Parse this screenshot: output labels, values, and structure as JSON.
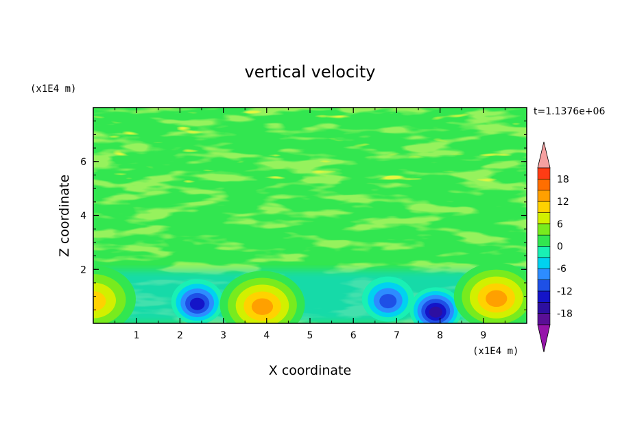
{
  "chart_data": {
    "type": "heatmap",
    "title": "vertical velocity",
    "xlabel": "X coordinate",
    "ylabel": "Z coordinate",
    "x_unit": "(x1E4 m)",
    "y_unit": "(x1E4 m)",
    "time_label": "t=1.1376e+06",
    "xlim": [
      0,
      10
    ],
    "ylim": [
      0,
      8
    ],
    "x_ticks": [
      "1",
      "2",
      "3",
      "4",
      "5",
      "6",
      "7",
      "8",
      "9"
    ],
    "y_ticks": [
      "2",
      "4",
      "6"
    ],
    "colorbar": {
      "levels": [
        -21,
        -18,
        -15,
        -12,
        -9,
        -6,
        -3,
        0,
        3,
        6,
        9,
        12,
        15,
        18,
        21
      ],
      "tick_labels": [
        "18",
        "12",
        "6",
        "0",
        "-6",
        "-12",
        "-18"
      ],
      "colors": [
        "#5a0f96",
        "#2d0fa0",
        "#1414c8",
        "#1e50e6",
        "#2d8cff",
        "#00d2f0",
        "#19f0b4",
        "#32e650",
        "#78eb1e",
        "#d2f000",
        "#ffd200",
        "#ffa000",
        "#ff6e00",
        "#ff3c14",
        "#e61e1e"
      ],
      "under_color": "#9614aa",
      "over_color": "#f5a0a0"
    },
    "features": [
      {
        "kind": "updraft",
        "x": 0.0,
        "z": 0.9,
        "value": 10
      },
      {
        "kind": "downdraft",
        "x": 2.4,
        "z": 0.8,
        "value": -14
      },
      {
        "kind": "updraft",
        "x": 3.9,
        "z": 0.7,
        "value": 15
      },
      {
        "kind": "downdraft",
        "x": 6.8,
        "z": 0.9,
        "value": -12
      },
      {
        "kind": "downdraft",
        "x": 7.9,
        "z": 0.5,
        "value": -17
      },
      {
        "kind": "updraft",
        "x": 9.3,
        "z": 1.0,
        "value": 14
      }
    ]
  }
}
